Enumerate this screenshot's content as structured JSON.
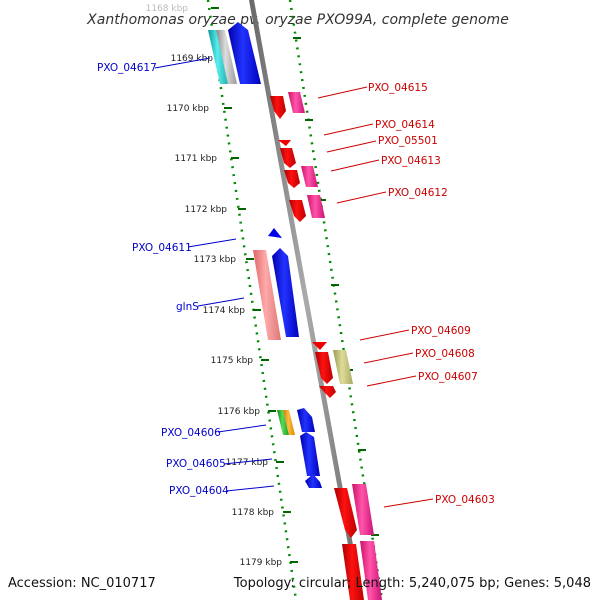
{
  "title": "Xanthomonas oryzae pv. oryzae PXO99A, complete genome",
  "footer": {
    "accession": "Accession: NC_010717",
    "info": "Topology: circular; Length: 5,240,075 bp; Genes: 5,048"
  },
  "ticks": [
    "1168 kbp",
    "1169 kbp",
    "1170 kbp",
    "1171 kbp",
    "1172 kbp",
    "1173 kbp",
    "1174 kbp",
    "1175 kbp",
    "1176 kbp",
    "1177 kbp",
    "1178 kbp",
    "1179 kbp"
  ],
  "labels_left": [
    "PXO_04617",
    "PXO_04611",
    "glnS",
    "PXO_04606",
    "PXO_04605",
    "PXO_04604"
  ],
  "labels_right": [
    "PXO_04615",
    "PXO_04614",
    "PXO_05501",
    "PXO_04613",
    "PXO_04612",
    "PXO_04609",
    "PXO_04608",
    "PXO_04607",
    "PXO_04603"
  ],
  "colors": {
    "blue": "#0000ee",
    "red": "#ee0000",
    "pink": "#ee2288",
    "salmon": "#ee8888",
    "cyan": "#22cccc",
    "olive": "#bbbb77",
    "green": "#33bb33",
    "orange": "#ff9900",
    "track": "#008800",
    "backbone": "#888888"
  }
}
